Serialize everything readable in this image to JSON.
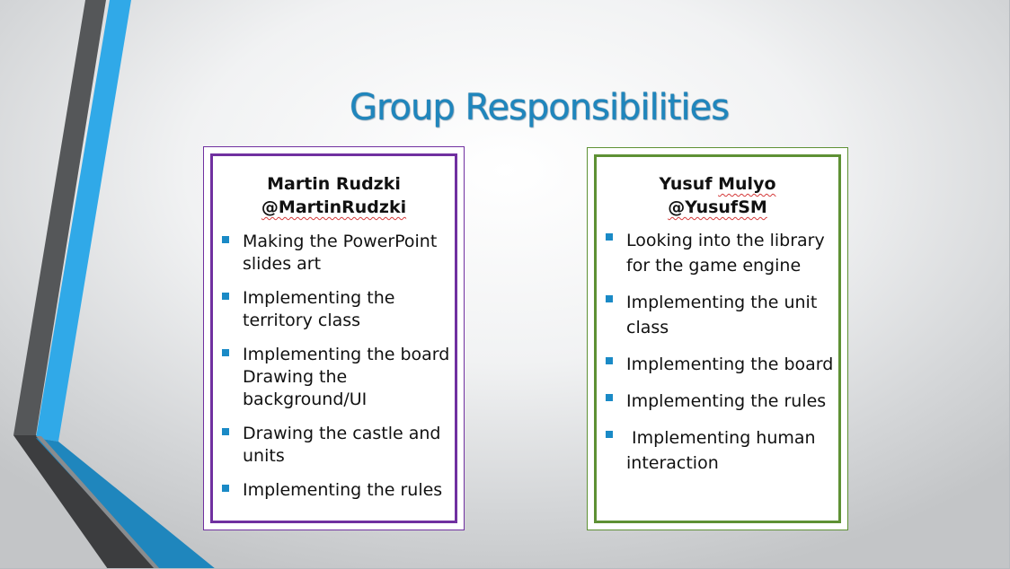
{
  "slide": {
    "title": "Group Responsibilities",
    "colors": {
      "title": "#1f86bd",
      "accent_blue": "#30a9e8",
      "accent_dark": "#555759",
      "left_card_border": "#7030a0",
      "right_card_border": "#5e9134",
      "bullet": "#1a8ac6"
    },
    "members": [
      {
        "name": "Martin Rudzki",
        "handle": "@MartinRudzki",
        "responsibilities": [
          "Making the PowerPoint slides art",
          "Implementing the territory class",
          "Implementing the board Drawing the background/UI",
          "Drawing the castle and units",
          "Implementing the rules"
        ]
      },
      {
        "name_first": "Yusuf",
        "name_last": "Mulyo",
        "handle": "@YusufSM",
        "responsibilities": [
          "Looking into the library for the game engine",
          "Implementing the unit class",
          "Implementing the board",
          "Implementing the rules",
          " Implementing human interaction"
        ]
      }
    ]
  }
}
